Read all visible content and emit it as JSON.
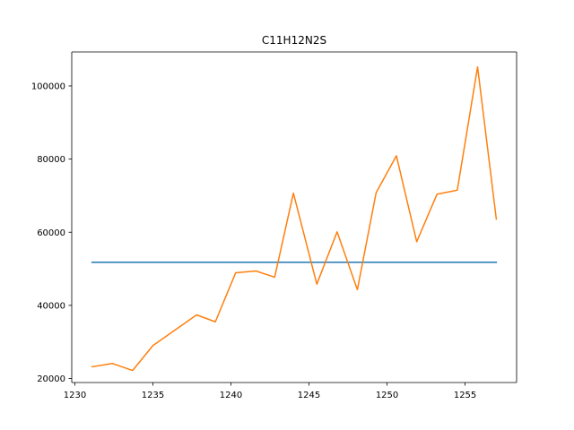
{
  "chart_data": {
    "type": "line",
    "title": "C11H12N2S",
    "xlabel": "",
    "ylabel": "",
    "xlim": [
      1229.8,
      1258.3
    ],
    "ylim": [
      18900,
      109300
    ],
    "xticks": [
      1230,
      1235,
      1240,
      1245,
      1250,
      1255
    ],
    "yticks": [
      20000,
      40000,
      60000,
      80000,
      100000
    ],
    "grid": false,
    "legend": "none",
    "series": [
      {
        "color": "#1f77b4",
        "x": [
          1231.1,
          1257.0
        ],
        "y": [
          51800,
          51800
        ]
      },
      {
        "color": "#ff7f0e",
        "x": [
          1231.1,
          1232.4,
          1233.7,
          1235.0,
          1236.4,
          1237.8,
          1239.0,
          1240.3,
          1241.6,
          1242.8,
          1244.0,
          1245.5,
          1246.8,
          1248.1,
          1249.3,
          1250.6,
          1251.9,
          1253.2,
          1254.5,
          1255.8,
          1257.0
        ],
        "y": [
          23200,
          24100,
          22200,
          29000,
          33200,
          37400,
          35500,
          48900,
          49400,
          47700,
          70700,
          45800,
          60100,
          44300,
          70800,
          80900,
          57400,
          70400,
          71500,
          105200,
          63600
        ]
      }
    ]
  }
}
